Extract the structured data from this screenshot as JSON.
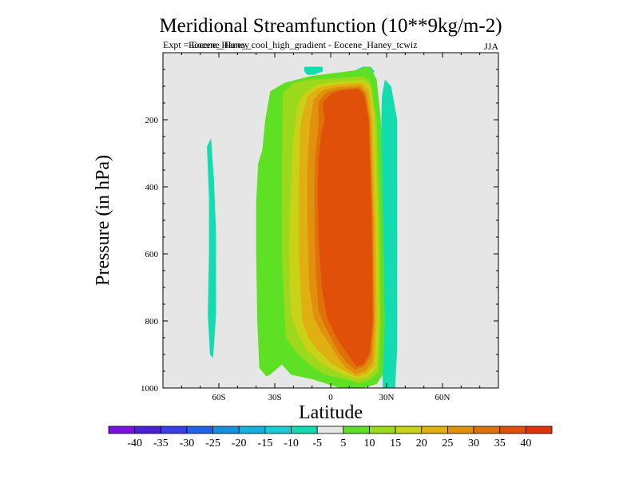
{
  "chart_data": {
    "type": "heatmap",
    "title": "Meridional Streamfunction (10**9kg/m-2)",
    "subtitle_left_1": "Expt = Eocene_Haney",
    "subtitle_left_2": "Eocene_Haney_cool_high_gradient - Eocene_Haney_tcwiz",
    "subtitle_right": "JJA",
    "xlabel": "Latitude",
    "ylabel": "Pressure (in hPa)",
    "xlim": [
      -90,
      90
    ],
    "ylim": [
      1000,
      0
    ],
    "y_reversed": true,
    "x_ticks": [
      {
        "value": -60,
        "label": "60S"
      },
      {
        "value": -30,
        "label": "30S"
      },
      {
        "value": 0,
        "label": "0"
      },
      {
        "value": 30,
        "label": "30N"
      },
      {
        "value": 60,
        "label": "60N"
      }
    ],
    "y_ticks": [
      {
        "value": 200,
        "label": "200"
      },
      {
        "value": 400,
        "label": "400"
      },
      {
        "value": 600,
        "label": "600"
      },
      {
        "value": 800,
        "label": "800"
      },
      {
        "value": 1000,
        "label": "1000"
      }
    ],
    "background_color": "#e6e6e6",
    "colorbar": {
      "levels": [
        -45,
        -40,
        -35,
        -30,
        -25,
        -20,
        -15,
        -10,
        -5,
        5,
        10,
        15,
        20,
        25,
        30,
        35,
        40,
        45
      ],
      "labels": [
        "-40",
        "-35",
        "-30",
        "-25",
        "-20",
        "-15",
        "-10",
        "-5",
        "5",
        "10",
        "15",
        "20",
        "25",
        "30",
        "35",
        "40"
      ],
      "colors": [
        "#7a10e0",
        "#4c20d8",
        "#3a3ee6",
        "#1f64e8",
        "#1690e0",
        "#14b0e0",
        "#1ccad8",
        "#12dcb0",
        "#e6e6e6",
        "#5ee024",
        "#9cd81c",
        "#c8d218",
        "#e0b010",
        "#e0900c",
        "#e0700a",
        "#e05008",
        "#e03406"
      ]
    },
    "contours": [
      {
        "value": -7.5,
        "points": [
          [
            -66.4,
            280
          ],
          [
            -65.3,
            430
          ],
          [
            -65.3,
            600
          ],
          [
            -65.9,
            780
          ],
          [
            -64.8,
            900
          ],
          [
            -63.1,
            910
          ],
          [
            -61.5,
            780
          ],
          [
            -61.5,
            540
          ],
          [
            -62.6,
            380
          ],
          [
            -64.2,
            255
          ]
        ]
      },
      {
        "value": -7.5,
        "points": [
          [
            17.1,
            42
          ],
          [
            21.5,
            42
          ],
          [
            23.6,
            58
          ],
          [
            19.8,
            66
          ],
          [
            15.4,
            66
          ],
          [
            12.1,
            56
          ]
        ]
      },
      {
        "value": -7.5,
        "points": [
          [
            -4.3,
            42
          ],
          [
            -4.3,
            56
          ],
          [
            -9.2,
            66
          ],
          [
            -12.5,
            66
          ],
          [
            -14.2,
            56
          ],
          [
            -14.2,
            42
          ]
        ]
      },
      {
        "value": -7.5,
        "points": [
          [
            29.1,
            80
          ],
          [
            32.4,
            100
          ],
          [
            35.7,
            200
          ],
          [
            35.7,
            880
          ],
          [
            34.6,
            1000
          ],
          [
            28.0,
            1000
          ],
          [
            27.5,
            860
          ],
          [
            26.9,
            600
          ],
          [
            26.9,
            260
          ],
          [
            27.5,
            130
          ]
        ]
      },
      {
        "value": 7.5,
        "points": [
          [
            -38.9,
            330
          ],
          [
            -36.7,
            290
          ],
          [
            -35.1,
            200
          ],
          [
            -32.4,
            115
          ],
          [
            -24.8,
            90
          ],
          [
            -11.0,
            70
          ],
          [
            14.3,
            52
          ],
          [
            18.7,
            42
          ],
          [
            20.9,
            42
          ],
          [
            24.7,
            80
          ],
          [
            26.9,
            200
          ],
          [
            28.0,
            500
          ],
          [
            29.1,
            800
          ],
          [
            28.0,
            960
          ],
          [
            24.7,
            988
          ],
          [
            17.1,
            1000
          ],
          [
            5.0,
            1000
          ],
          [
            -9.2,
            975
          ],
          [
            -21.3,
            960
          ],
          [
            -26.2,
            930
          ],
          [
            -32.4,
            960
          ],
          [
            -34.6,
            965
          ],
          [
            -38.3,
            940
          ],
          [
            -39.4,
            800
          ],
          [
            -40.0,
            600
          ],
          [
            -40.0,
            450
          ]
        ]
      },
      {
        "value": 12.5,
        "points": [
          [
            -25.7,
            120
          ],
          [
            -19.7,
            90
          ],
          [
            -10.5,
            80
          ],
          [
            5.0,
            75
          ],
          [
            17.6,
            70
          ],
          [
            21.5,
            90
          ],
          [
            24.7,
            200
          ],
          [
            26.3,
            500
          ],
          [
            26.9,
            800
          ],
          [
            25.8,
            950
          ],
          [
            21.5,
            975
          ],
          [
            15.4,
            985
          ],
          [
            8.3,
            975
          ],
          [
            -3.2,
            960
          ],
          [
            -11.5,
            930
          ],
          [
            -17.6,
            900
          ],
          [
            -24.1,
            850
          ],
          [
            -26.2,
            600
          ],
          [
            -26.2,
            350
          ]
        ]
      },
      {
        "value": 17.5,
        "points": [
          [
            -18.6,
            200
          ],
          [
            -18.1,
            160
          ],
          [
            -14.2,
            120
          ],
          [
            -7.0,
            95
          ],
          [
            6.0,
            85
          ],
          [
            17.6,
            82
          ],
          [
            21.5,
            100
          ],
          [
            23.6,
            200
          ],
          [
            25.2,
            500
          ],
          [
            25.8,
            800
          ],
          [
            24.7,
            940
          ],
          [
            19.8,
            968
          ],
          [
            13.8,
            975
          ],
          [
            6.6,
            960
          ],
          [
            -4.3,
            930
          ],
          [
            -13.1,
            885
          ],
          [
            -17.6,
            840
          ],
          [
            -21.3,
            780
          ],
          [
            -22.4,
            600
          ],
          [
            -21.3,
            400
          ],
          [
            -20.2,
            260
          ]
        ]
      },
      {
        "value": 22.5,
        "points": [
          [
            -12.5,
            130
          ],
          [
            -7.0,
            105
          ],
          [
            2.8,
            95
          ],
          [
            16.5,
            90
          ],
          [
            20.4,
            110
          ],
          [
            22.5,
            200
          ],
          [
            24.1,
            500
          ],
          [
            24.7,
            800
          ],
          [
            23.6,
            930
          ],
          [
            19.3,
            958
          ],
          [
            13.8,
            966
          ],
          [
            7.7,
            950
          ],
          [
            1.1,
            930
          ],
          [
            -6.5,
            890
          ],
          [
            -12.0,
            850
          ],
          [
            -15.3,
            800
          ],
          [
            -17.0,
            600
          ],
          [
            -17.0,
            400
          ],
          [
            -16.4,
            230
          ],
          [
            -15.3,
            190
          ]
        ]
      },
      {
        "value": 27.5,
        "points": [
          [
            -9.2,
            140
          ],
          [
            -4.3,
            112
          ],
          [
            4.5,
            102
          ],
          [
            15.9,
            98
          ],
          [
            19.3,
            118
          ],
          [
            21.5,
            200
          ],
          [
            23.0,
            500
          ],
          [
            23.6,
            800
          ],
          [
            22.5,
            920
          ],
          [
            18.7,
            950
          ],
          [
            13.2,
            958
          ],
          [
            8.3,
            940
          ],
          [
            3.9,
            910
          ],
          [
            -0.5,
            870
          ],
          [
            -5.4,
            830
          ],
          [
            -9.2,
            790
          ],
          [
            -11.5,
            700
          ],
          [
            -12.5,
            500
          ],
          [
            -12.5,
            350
          ],
          [
            -11.5,
            250
          ],
          [
            -11.0,
            210
          ]
        ]
      },
      {
        "value": 32.5,
        "points": [
          [
            -6.5,
            145
          ],
          [
            -2.1,
            118
          ],
          [
            5.0,
            108
          ],
          [
            15.4,
            104
          ],
          [
            18.7,
            125
          ],
          [
            20.9,
            200
          ],
          [
            22.5,
            500
          ],
          [
            23.0,
            800
          ],
          [
            21.5,
            905
          ],
          [
            18.1,
            935
          ],
          [
            13.2,
            945
          ],
          [
            8.8,
            925
          ],
          [
            4.5,
            895
          ],
          [
            1.1,
            860
          ],
          [
            -3.2,
            815
          ],
          [
            -6.5,
            770
          ],
          [
            -8.1,
            650
          ],
          [
            -8.7,
            500
          ],
          [
            -8.7,
            380
          ],
          [
            -8.1,
            300
          ],
          [
            -6.5,
            220
          ]
        ]
      },
      {
        "value": 37.5,
        "points": [
          [
            -4.3,
            150
          ],
          [
            0.6,
            122
          ],
          [
            6.0,
            112
          ],
          [
            14.9,
            108
          ],
          [
            18.1,
            130
          ],
          [
            20.4,
            200
          ],
          [
            22.0,
            500
          ],
          [
            22.5,
            800
          ],
          [
            20.9,
            895
          ],
          [
            17.6,
            928
          ],
          [
            13.8,
            935
          ],
          [
            10.5,
            910
          ],
          [
            6.6,
            880
          ],
          [
            2.2,
            840
          ],
          [
            -2.1,
            790
          ],
          [
            -4.8,
            700
          ],
          [
            -6.5,
            550
          ],
          [
            -7.0,
            420
          ],
          [
            -6.5,
            320
          ],
          [
            -4.8,
            230
          ],
          [
            -3.2,
            200
          ]
        ]
      }
    ]
  }
}
